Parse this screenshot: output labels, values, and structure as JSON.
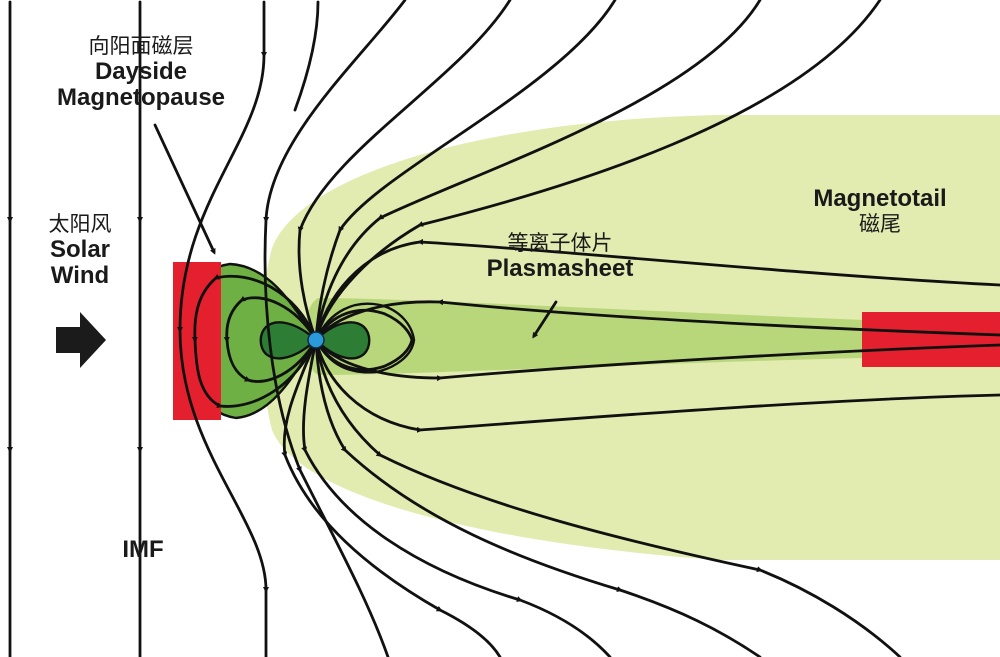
{
  "colors": {
    "magnetotail_fill": "#e2ebb0",
    "plasmasheet_fill": "#b8d77a",
    "inner_lobe_fill": "#6eb044",
    "core_lobe_fill": "#2d7d35",
    "reconnection_region": "#e5202e",
    "earth": "#2a9ad8",
    "field_line": "#111111",
    "label_text": "#1a1a1a"
  },
  "icons": {
    "solar_wind_arrow": "solar-wind-arrow-icon",
    "earth": "earth-icon",
    "field_line_arrowhead": "arrowhead-icon"
  },
  "labels": {
    "dayside_magnetopause": {
      "zh": "向阳面磁层",
      "en_line1": "Dayside",
      "en_line2": "Magnetopause"
    },
    "solar_wind": {
      "zh": "太阳风",
      "en_line1": "Solar",
      "en_line2": "Wind"
    },
    "imf": {
      "en": "IMF"
    },
    "plasmasheet": {
      "zh": "等离子体片",
      "en": "Plasmasheet"
    },
    "magnetotail": {
      "en": "Magnetotail",
      "zh": "磁尾"
    }
  }
}
